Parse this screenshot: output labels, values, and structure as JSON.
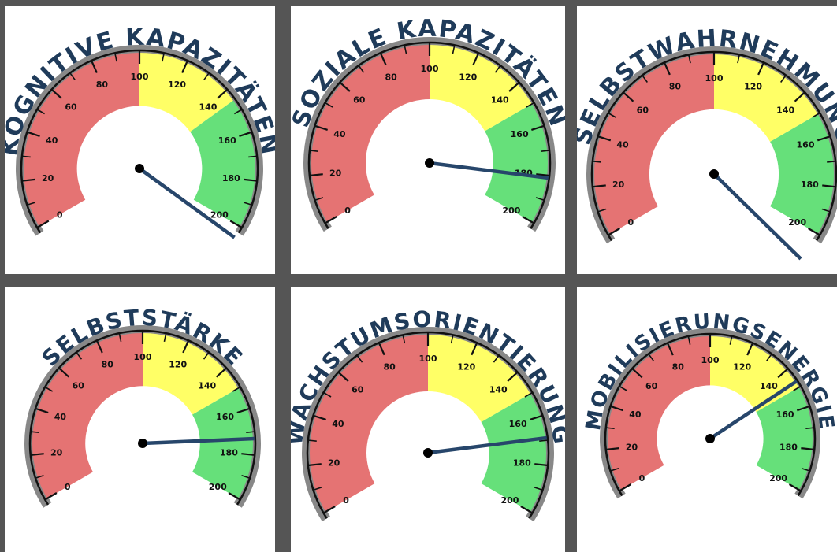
{
  "chart_data": [
    {
      "type": "gauge",
      "title": "KOGNITIVE KAPAZITÄTEN",
      "range": [
        0,
        200
      ],
      "value": 205,
      "ticks": [
        "0",
        "20",
        "40",
        "60",
        "80",
        "100",
        "120",
        "140",
        "160",
        "180",
        "200"
      ],
      "zones": [
        {
          "from": 0,
          "to": 100,
          "color": "#e57373"
        },
        {
          "from": 100,
          "to": 145,
          "color": "#ffff66"
        },
        {
          "from": 145,
          "to": 200,
          "color": "#66e07a"
        }
      ]
    },
    {
      "type": "gauge",
      "title": "SOZIALE KAPAZITÄTEN",
      "range": [
        0,
        200
      ],
      "value": 181,
      "ticks": [
        "0",
        "20",
        "40",
        "60",
        "80",
        "100",
        "120",
        "140",
        "160",
        "180",
        "200"
      ],
      "zones": [
        {
          "from": 0,
          "to": 100,
          "color": "#e57373"
        },
        {
          "from": 100,
          "to": 150,
          "color": "#ffff66"
        },
        {
          "from": 150,
          "to": 200,
          "color": "#66e07a"
        }
      ]
    },
    {
      "type": "gauge",
      "title": "SELBSTWAHRNEHMUNG",
      "range": [
        0,
        200
      ],
      "value": 212,
      "ticks": [
        "0",
        "20",
        "40",
        "60",
        "80",
        "100",
        "120",
        "140",
        "160",
        "180",
        "200"
      ],
      "zones": [
        {
          "from": 0,
          "to": 100,
          "color": "#e57373"
        },
        {
          "from": 100,
          "to": 150,
          "color": "#ffff66"
        },
        {
          "from": 150,
          "to": 200,
          "color": "#66e07a"
        }
      ]
    },
    {
      "type": "gauge",
      "title": "SELBSTSTÄRKE",
      "range": [
        0,
        200
      ],
      "value": 173,
      "ticks": [
        "0",
        "20",
        "40",
        "60",
        "80",
        "100",
        "120",
        "140",
        "160",
        "180",
        "200"
      ],
      "zones": [
        {
          "from": 0,
          "to": 100,
          "color": "#e57373"
        },
        {
          "from": 100,
          "to": 150,
          "color": "#ffff66"
        },
        {
          "from": 150,
          "to": 200,
          "color": "#66e07a"
        }
      ]
    },
    {
      "type": "gauge",
      "title": "WACHSTUMSORIENTIERUNG",
      "range": [
        0,
        200
      ],
      "value": 169,
      "ticks": [
        "0",
        "20",
        "40",
        "60",
        "80",
        "100",
        "120",
        "140",
        "160",
        "180",
        "200"
      ],
      "zones": [
        {
          "from": 0,
          "to": 100,
          "color": "#e57373"
        },
        {
          "from": 100,
          "to": 150,
          "color": "#ffff66"
        },
        {
          "from": 150,
          "to": 200,
          "color": "#66e07a"
        }
      ]
    },
    {
      "type": "gauge",
      "title": "MOBILISIERUNGSENERGIE",
      "range": [
        0,
        200
      ],
      "value": 147,
      "ticks": [
        "0",
        "20",
        "40",
        "60",
        "80",
        "100",
        "120",
        "140",
        "160",
        "180",
        "200"
      ],
      "zones": [
        {
          "from": 0,
          "to": 100,
          "color": "#e57373"
        },
        {
          "from": 100,
          "to": 150,
          "color": "#ffff66"
        },
        {
          "from": 150,
          "to": 200,
          "color": "#66e07a"
        }
      ]
    }
  ],
  "colors": {
    "needle": "#27466b",
    "title": "#1f3b5a",
    "rim_outer": "#888888",
    "rim_line": "#111111",
    "background": "#555555",
    "panel": "#ffffff"
  }
}
